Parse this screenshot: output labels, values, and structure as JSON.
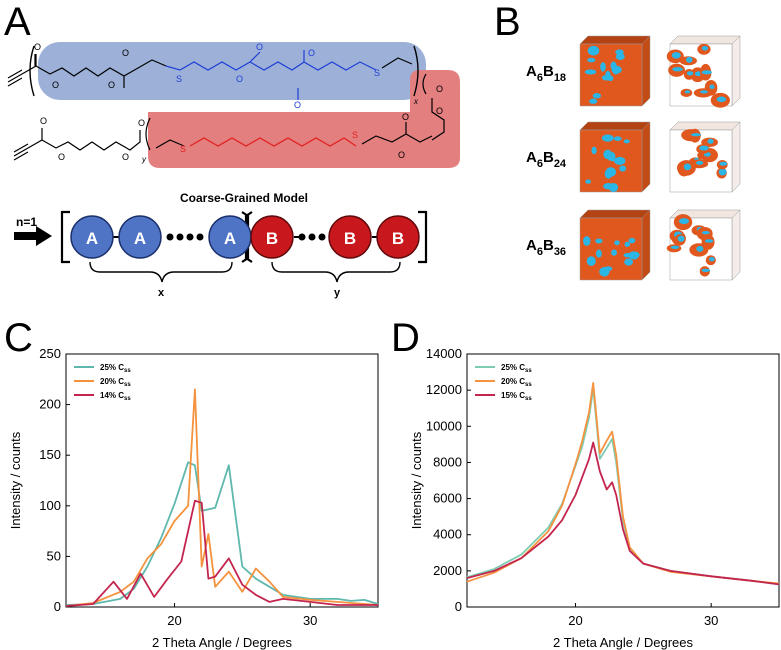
{
  "panel_letters": {
    "a": "A",
    "b": "B",
    "c": "C",
    "d": "D"
  },
  "panel_a": {
    "subscript_x": "x",
    "subscript_y": "y",
    "thioether_atom": "S",
    "cg_title": "Coarse-Grained Model",
    "n_label": "n=1",
    "bead_a": "A",
    "bead_b": "B",
    "brace_x": "x",
    "brace_y": "y",
    "colors": {
      "block_a": "#4f74c6",
      "block_b": "#d32a2a",
      "band_a": "#9db1d8",
      "band_b": "#e47f80"
    }
  },
  "panel_b": {
    "rows": [
      {
        "base": "A",
        "sub1": "6",
        "base2": "B",
        "sub2": "18"
      },
      {
        "base": "A",
        "sub1": "6",
        "base2": "B",
        "sub2": "24"
      },
      {
        "base": "A",
        "sub1": "6",
        "base2": "B",
        "sub2": "36"
      }
    ],
    "colors": {
      "matrix": "#e0581e",
      "domain": "#2bb6e6"
    }
  },
  "chart_data": [
    {
      "panel": "C",
      "type": "line",
      "xlabel": "2 Theta Angle / Degrees",
      "ylabel": "Intensity / counts",
      "xlim": [
        12,
        35
      ],
      "ylim": [
        0,
        250
      ],
      "xticks": [
        20,
        30
      ],
      "yticks": [
        0,
        50,
        100,
        150,
        200,
        250
      ],
      "legend_position": "top-left",
      "series": [
        {
          "name": "25% C",
          "name_sub": "ss",
          "color": "#5fb8ad",
          "x": [
            12,
            14,
            16,
            17,
            18,
            19,
            20,
            21,
            21.5,
            22,
            23,
            24,
            25,
            26,
            27,
            28,
            30,
            32,
            33,
            34,
            35
          ],
          "y": [
            2,
            3,
            8,
            18,
            40,
            68,
            102,
            143,
            140,
            95,
            98,
            140,
            40,
            28,
            20,
            12,
            8,
            8,
            6,
            7,
            3
          ]
        },
        {
          "name": "20% C",
          "name_sub": "ss",
          "color": "#f5923e",
          "x": [
            12,
            14,
            16,
            17,
            18,
            19,
            20,
            21,
            21.5,
            22,
            22.5,
            23,
            24,
            25,
            26,
            27,
            28,
            30,
            32,
            35
          ],
          "y": [
            1,
            4,
            15,
            25,
            48,
            62,
            85,
            100,
            215,
            40,
            72,
            20,
            35,
            15,
            38,
            25,
            10,
            7,
            5,
            2
          ]
        },
        {
          "name": "14% C",
          "name_sub": "ss",
          "color": "#c4254e",
          "x": [
            12,
            14,
            15.5,
            16.5,
            17.5,
            18.5,
            19.5,
            20.5,
            21.5,
            22,
            22.5,
            23,
            24,
            25,
            26,
            27,
            28,
            30,
            32,
            35
          ],
          "y": [
            1,
            3,
            25,
            8,
            33,
            10,
            28,
            45,
            105,
            103,
            28,
            30,
            48,
            22,
            12,
            5,
            8,
            5,
            2,
            2
          ]
        }
      ]
    },
    {
      "panel": "D",
      "type": "line",
      "xlabel": "2 Theta Angle / Degrees",
      "ylabel": "Intensity / counts",
      "xlim": [
        12,
        35
      ],
      "ylim": [
        0,
        14000
      ],
      "xticks": [
        20,
        30
      ],
      "yticks": [
        0,
        2000,
        4000,
        6000,
        8000,
        10000,
        12000,
        14000
      ],
      "legend_position": "top-left",
      "series": [
        {
          "name": "25% C",
          "name_sub": "ss",
          "color": "#7ecdb2",
          "x": [
            12,
            14,
            16,
            18,
            19,
            20,
            20.5,
            21,
            21.3,
            21.8,
            22.3,
            22.7,
            23,
            23.5,
            24,
            25,
            27,
            30,
            33,
            35
          ],
          "y": [
            1650,
            2100,
            2900,
            4400,
            5700,
            7800,
            8900,
            10500,
            12100,
            8200,
            8800,
            9300,
            8000,
            4800,
            3200,
            2400,
            2000,
            1700,
            1450,
            1250
          ]
        },
        {
          "name": "20% C",
          "name_sub": "ss",
          "color": "#f59340",
          "x": [
            12,
            14,
            16,
            18,
            19,
            20,
            20.5,
            21,
            21.3,
            21.8,
            22.3,
            22.7,
            23,
            23.5,
            24,
            25,
            27,
            30,
            33,
            35
          ],
          "y": [
            1400,
            1900,
            2700,
            4200,
            5600,
            7900,
            9200,
            10800,
            12400,
            8500,
            9200,
            9700,
            8400,
            5000,
            3300,
            2400,
            1950,
            1700,
            1450,
            1300
          ]
        },
        {
          "name": "15% C",
          "name_sub": "ss",
          "color": "#c4254e",
          "x": [
            12,
            14,
            16,
            18,
            19,
            20,
            20.5,
            21,
            21.3,
            21.8,
            22.3,
            22.7,
            23,
            23.5,
            24,
            25,
            27,
            30,
            33,
            35
          ],
          "y": [
            1600,
            2000,
            2700,
            3900,
            4800,
            6200,
            7200,
            8200,
            9100,
            7500,
            6500,
            6900,
            6200,
            4300,
            3100,
            2400,
            2000,
            1700,
            1450,
            1250
          ]
        }
      ]
    }
  ]
}
